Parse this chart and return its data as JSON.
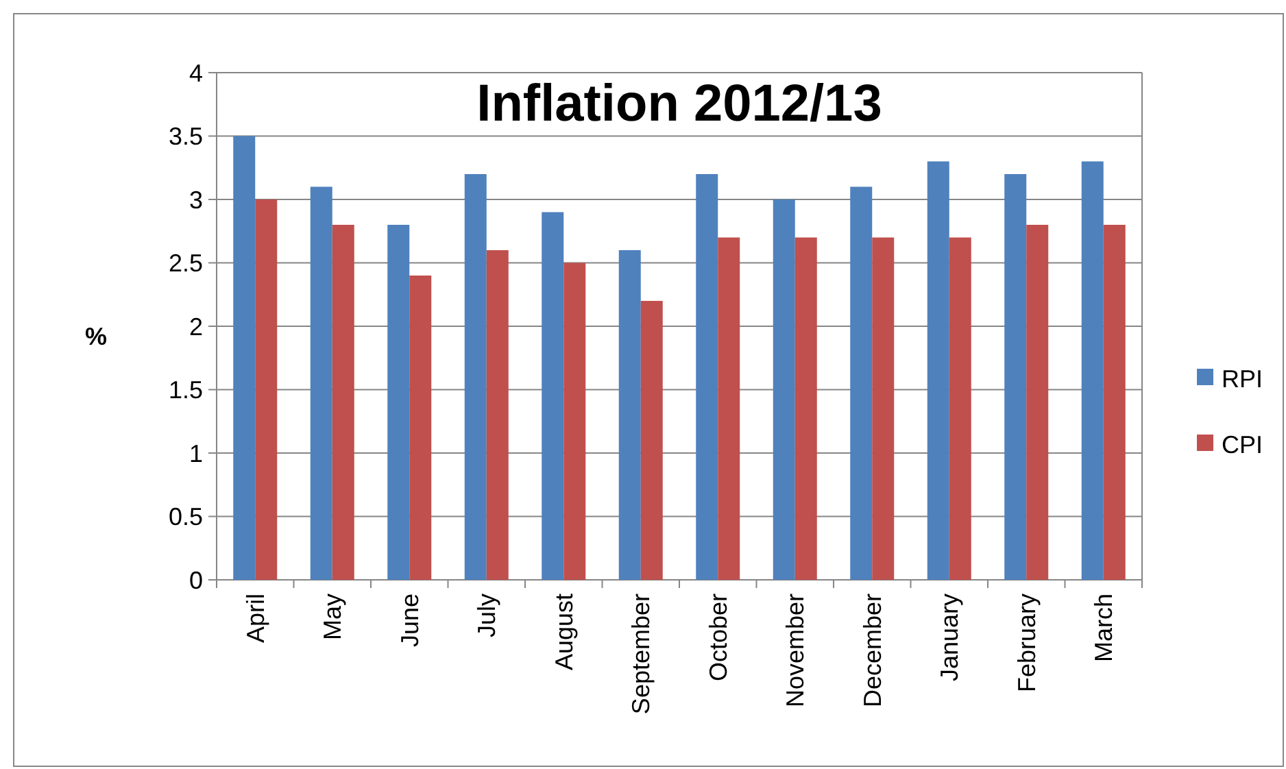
{
  "chart_data": {
    "type": "bar",
    "title": "Inflation 2012/13",
    "ylabel": "%",
    "categories": [
      "April",
      "May",
      "June",
      "July",
      "August",
      "September",
      "October",
      "November",
      "December",
      "January",
      "February",
      "March"
    ],
    "series": [
      {
        "name": "RPI",
        "color": "#4f81bd",
        "values": [
          3.5,
          3.1,
          2.8,
          3.2,
          2.9,
          2.6,
          3.2,
          3.0,
          3.1,
          3.3,
          3.2,
          3.3
        ]
      },
      {
        "name": "CPI",
        "color": "#c0504d",
        "values": [
          3.0,
          2.8,
          2.4,
          2.6,
          2.5,
          2.2,
          2.7,
          2.7,
          2.7,
          2.7,
          2.8,
          2.8
        ]
      }
    ],
    "ylim": [
      0,
      4
    ],
    "yticks": [
      0,
      0.5,
      1,
      1.5,
      2,
      2.5,
      3,
      3.5,
      4
    ],
    "grid": "y",
    "legend": "right"
  }
}
